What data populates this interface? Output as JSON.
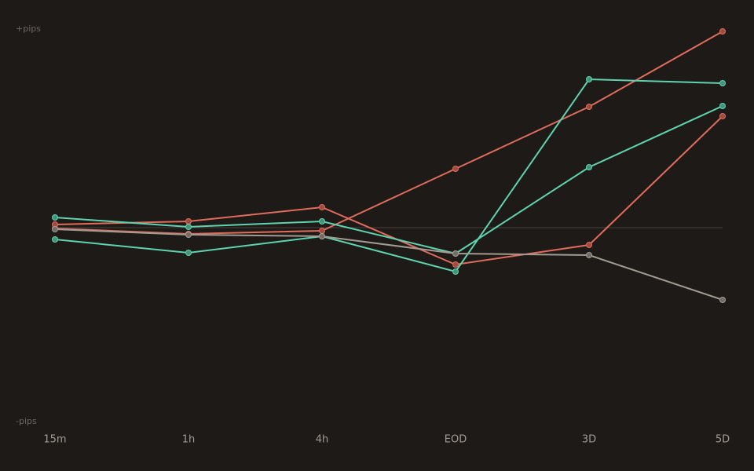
{
  "chart_data": {
    "type": "line",
    "annotations": [
      "+pips",
      "-pips"
    ],
    "categories": [
      "15m",
      "1h",
      "4h",
      "EOD",
      "3D",
      "5D"
    ],
    "ylim": [
      -100,
      100
    ],
    "baseline": 0,
    "series": [
      {
        "color": "#e06c5c",
        "values": [
          -0.4,
          -3.2,
          -1.6,
          30,
          61.6,
          100
        ]
      },
      {
        "color": "#e06c5c",
        "values": [
          1.6,
          3.2,
          10.4,
          -18.8,
          -8.8,
          56.8
        ]
      },
      {
        "color": "#5fd3b0",
        "values": [
          5.2,
          0.4,
          3.2,
          -13.2,
          30.8,
          62
        ]
      },
      {
        "color": "#5fd3b0",
        "values": [
          -6,
          -12.8,
          -4.4,
          -22.4,
          75.6,
          73.6
        ]
      },
      {
        "color": "#a39a92",
        "values": [
          -0.8,
          -3.6,
          -4.4,
          -13.2,
          -14,
          -36.8
        ]
      }
    ]
  }
}
